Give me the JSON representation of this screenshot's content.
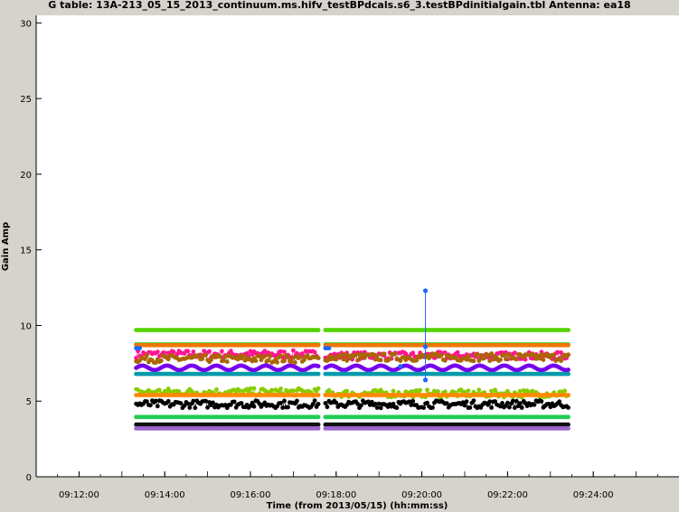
{
  "chart_data": {
    "type": "scatter",
    "title": "G table: 13A-213_05_15_2013_continuum.ms.hifv_testBPdcals.s6_3.testBPdinitialgain.tbl   Antenna: ea18",
    "xlabel": "Time (from 2013/05/15) (hh:mm:ss)",
    "ylabel": "Gain Amp",
    "xlim": [
      "09:11:00",
      "09:26:00"
    ],
    "ylim": [
      0,
      30.5
    ],
    "x_ticks": [
      "09:12:00",
      "09:14:00",
      "09:16:00",
      "09:18:00",
      "09:20:00",
      "09:22:00",
      "09:24:00"
    ],
    "y_ticks": [
      0,
      5,
      10,
      15,
      20,
      25,
      30
    ],
    "grid": false,
    "legend": "none",
    "scan_ranges": [
      [
        "09:13:20",
        "09:17:35"
      ],
      [
        "09:17:45",
        "09:23:25"
      ]
    ],
    "series": [
      {
        "color": "#55d400",
        "values_y": [
          9.7,
          9.7
        ]
      },
      {
        "color": "#22dd44",
        "values_y": [
          8.75,
          8.75
        ]
      },
      {
        "color": "#ee7700",
        "values_y": [
          8.7,
          8.7
        ]
      },
      {
        "color": "#ff1493",
        "values_y": [
          8.1,
          8.0
        ]
      },
      {
        "color": "#aa6600",
        "values_y": [
          7.8,
          7.9
        ]
      },
      {
        "color": "#7700ee",
        "values_y": [
          7.2,
          7.2
        ]
      },
      {
        "color": "#0099aa",
        "values_y": [
          6.8,
          6.8
        ]
      },
      {
        "color": "#88cc00",
        "values_y": [
          5.6,
          5.5
        ]
      },
      {
        "color": "#ff8800",
        "values_y": [
          5.4,
          5.4
        ]
      },
      {
        "color": "#000000",
        "values_y": [
          4.8,
          4.8
        ]
      },
      {
        "color": "#22cc55",
        "values_y": [
          3.95,
          3.95
        ]
      },
      {
        "color": "#111111",
        "values_y": [
          3.45,
          3.45
        ]
      },
      {
        "color": "#9966cc",
        "values_y": [
          3.2,
          3.2
        ]
      },
      {
        "color": "#1a66ff",
        "values_y": [
          8.5,
          8.5
        ]
      }
    ],
    "outliers": [
      {
        "x": "09:20:05",
        "y": 12.3,
        "color": "#1a66ff"
      },
      {
        "x": "09:20:05",
        "y": 8.6,
        "color": "#1a66ff"
      },
      {
        "x": "09:20:05",
        "y": 6.4,
        "color": "#1a66ff"
      },
      {
        "x": "09:19:30",
        "y": 7.3,
        "color": "#1a66ff"
      }
    ]
  }
}
